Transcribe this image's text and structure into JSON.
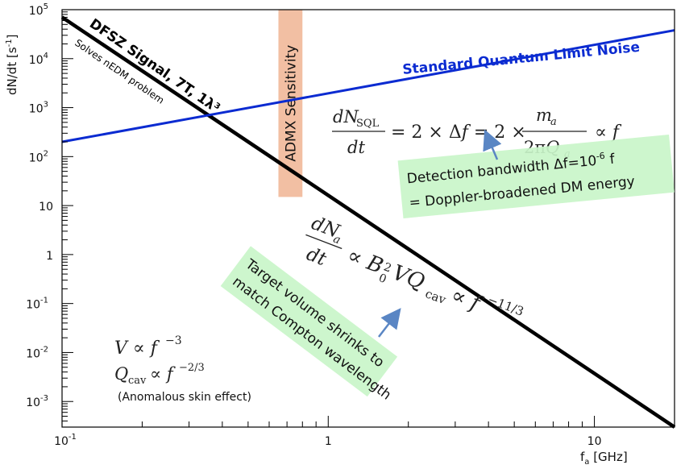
{
  "chart_data": {
    "type": "line",
    "xscale": "log",
    "yscale": "log",
    "xlim": [
      0.1,
      20
    ],
    "ylim": [
      0.0003,
      100000
    ],
    "xlabel": "f",
    "xlabel_sub": "a",
    "xlabel_unit": " [GHz]",
    "ylabel": "dN/dt [s",
    "ylabel_sup": "-1",
    "ylabel_end": "]",
    "x_ticks": [
      {
        "value": 0.1,
        "base": "10",
        "exp": "-1"
      },
      {
        "value": 1,
        "base": "1",
        "exp": ""
      },
      {
        "value": 10,
        "base": "10",
        "exp": ""
      }
    ],
    "y_ticks": [
      {
        "value": 100000,
        "base": "10",
        "exp": "5"
      },
      {
        "value": 10000,
        "base": "10",
        "exp": "4"
      },
      {
        "value": 1000,
        "base": "10",
        "exp": "3"
      },
      {
        "value": 100,
        "base": "10",
        "exp": "2"
      },
      {
        "value": 10,
        "base": "10",
        "exp": ""
      },
      {
        "value": 1,
        "base": "1",
        "exp": ""
      },
      {
        "value": 0.1,
        "base": "10",
        "exp": "-1"
      },
      {
        "value": 0.01,
        "base": "10",
        "exp": "-2"
      },
      {
        "value": 0.001,
        "base": "10",
        "exp": "-3"
      }
    ],
    "series": [
      {
        "name": "DFSZ Signal, 7T, 1λ³",
        "color": "#000000",
        "points": [
          [
            0.1,
            70000
          ],
          [
            20,
            0.0003
          ]
        ]
      },
      {
        "name": "Standard Quantum Limit Noise",
        "color": "#0b2bd1",
        "points": [
          [
            0.1,
            200
          ],
          [
            20,
            38000
          ]
        ]
      }
    ],
    "band": {
      "label": "ADMX  Sensitivity",
      "x_range": [
        0.65,
        0.8
      ],
      "y_range": [
        15,
        100000
      ],
      "color": "#f0b493"
    }
  },
  "labels": {
    "signal": "DFSZ Signal, 7T, 1λ³",
    "signal_sub": "Solves nEDM problem",
    "sql": "Standard Quantum Limit Noise",
    "admx": "ADMX  Sensitivity",
    "detection_line1": "Detection bandwidth Δf=10",
    "detection_sup": "-6",
    "detection_line1_end": " f",
    "detection_line2": "= Doppler-broadened DM energy",
    "target_line1": "Target volume shrinks to",
    "target_line2": "match Compton wavelength",
    "skin_effect": "(Anomalous skin effect)"
  },
  "colors": {
    "signal": "#000000",
    "sql": "#0b2bd1",
    "admx_band": "#f0b493",
    "note_box": "#c9f5c9",
    "arrow": "#5a86c4"
  }
}
